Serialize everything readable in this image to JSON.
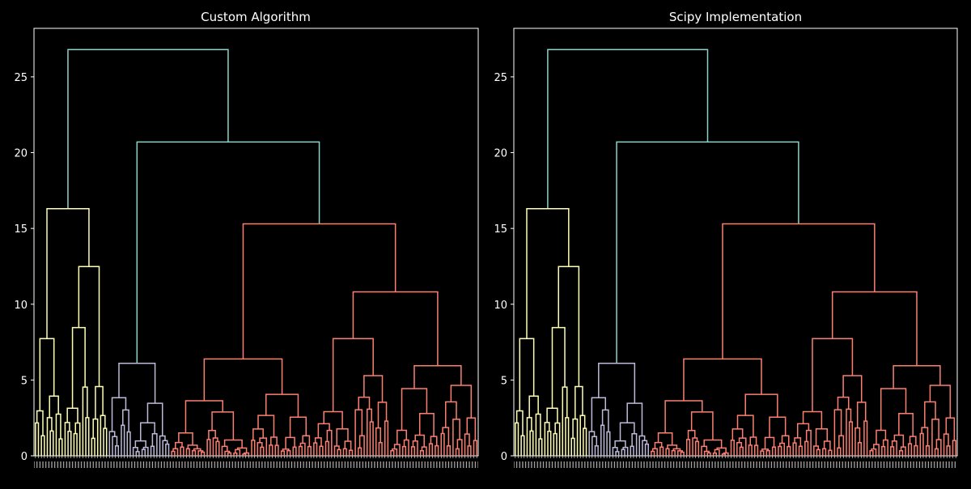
{
  "figure": {
    "background": "#000000"
  },
  "chart_data": [
    {
      "type": "dendrogram",
      "title": "Custom Algorithm",
      "xlabel": "",
      "ylabel": "",
      "ylim": [
        0,
        28.2
      ],
      "yticks": [
        0,
        5,
        10,
        15,
        20,
        25
      ],
      "grid": false,
      "leaf_count": 150,
      "leaf_labels": "unreadable (rotated, very small)",
      "colors": {
        "cluster_a": "#ffffb3",
        "cluster_b": "#bebada",
        "cluster_c": "#fb8072",
        "above_threshold": "#8dd3c7"
      },
      "top_merges": [
        {
          "height": 26.8,
          "children": [
            "cluster_a",
            "merge_20.7"
          ]
        },
        {
          "height": 20.7,
          "children": [
            "cluster_b",
            "cluster_c"
          ]
        },
        {
          "height": 16.3,
          "node": "cluster_a root"
        },
        {
          "height": 15.3,
          "node": "cluster_c root"
        },
        {
          "height": 6.1,
          "node": "cluster_b root"
        }
      ]
    },
    {
      "type": "dendrogram",
      "title": "Scipy Implementation",
      "xlabel": "",
      "ylabel": "",
      "ylim": [
        0,
        28.2
      ],
      "yticks": [
        0,
        5,
        10,
        15,
        20,
        25
      ],
      "grid": false,
      "leaf_count": 150,
      "leaf_labels": "unreadable (rotated, very small)",
      "colors": {
        "cluster_a": "#ffffb3",
        "cluster_b": "#bebada",
        "cluster_c": "#fb8072",
        "above_threshold": "#8dd3c7"
      },
      "top_merges": [
        {
          "height": 26.8,
          "children": [
            "cluster_a",
            "merge_20.7"
          ]
        },
        {
          "height": 20.7,
          "children": [
            "cluster_b",
            "cluster_c"
          ]
        },
        {
          "height": 16.3,
          "node": "cluster_a root"
        },
        {
          "height": 15.3,
          "node": "cluster_c root"
        },
        {
          "height": 6.1,
          "node": "cluster_b root"
        }
      ]
    }
  ]
}
